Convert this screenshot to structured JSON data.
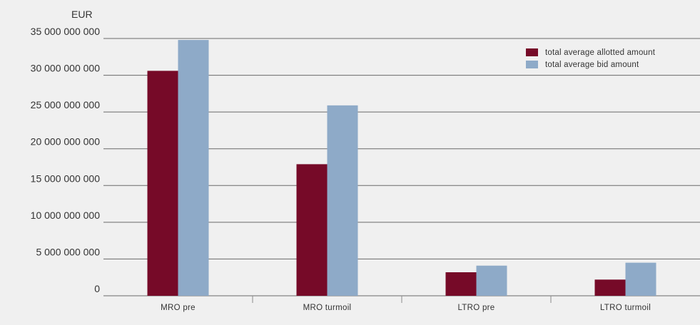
{
  "chart_data": {
    "type": "bar",
    "ylabel": "EUR",
    "categories": [
      "MRO pre",
      "MRO turmoil",
      "LTRO pre",
      "LTRO turmoil"
    ],
    "series": [
      {
        "name": "total average allotted amount",
        "color": "#760a28",
        "values": [
          30600000000,
          17900000000,
          3200000000,
          2200000000
        ]
      },
      {
        "name": "total average bid amount",
        "color": "#8eaac8",
        "values": [
          34800000000,
          25900000000,
          4100000000,
          4500000000
        ]
      }
    ],
    "ylim": [
      0,
      35000000000
    ],
    "yticks": [
      0,
      5000000000,
      10000000000,
      15000000000,
      20000000000,
      25000000000,
      30000000000,
      35000000000
    ],
    "ytick_labels": [
      "0",
      "5 000 000 000",
      "10 000 000 000",
      "15 000 000 000",
      "20 000 000 000",
      "25 000 000 000",
      "30 000 000 000",
      "35 000 000 000"
    ],
    "grid": true,
    "legend_position": "top-right"
  }
}
